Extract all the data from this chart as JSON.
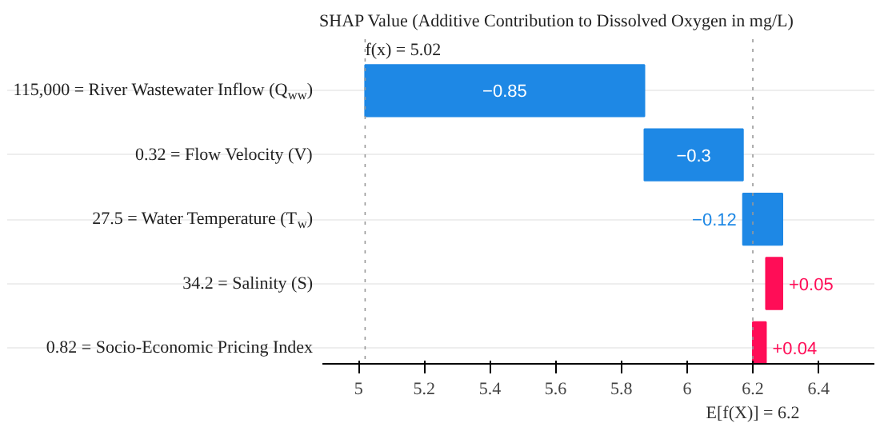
{
  "chart_data": {
    "type": "bar",
    "orientation": "horizontal",
    "title": "SHAP Value (Additive Contribution to Dissolved Oxygen in mg/L)",
    "categories": [
      "115,000 = River Wastewater Inflow (Q$_{ww}$)",
      "0.32 = Flow Velocity (V)",
      "27.5 = Water Temperature (T$_{w}$)",
      "34.2 = Salinity (S)",
      "0.82 = Socio-Economic Pricing Index"
    ],
    "values": [
      -0.85,
      -0.3,
      -0.12,
      0.05,
      0.04
    ],
    "base": [
      5.87,
      6.17,
      6.29,
      6.24,
      6.2
    ],
    "colors": [
      "#1e88e5",
      "#1e88e5",
      "#1e88e5",
      "#ff0d57",
      "#ff0d57"
    ],
    "value_labels": [
      "−0.85",
      "−0.3",
      "−0.12",
      "+0.05",
      "+0.04"
    ],
    "xlim": [
      4.89,
      6.57
    ],
    "xticks": [
      5.0,
      5.2,
      5.4,
      5.6,
      5.8,
      6.0,
      6.2,
      6.4
    ],
    "ref_lines": [
      {
        "axis": "x",
        "value": 5.02,
        "label": "f(x) = 5.02",
        "color": "#999999",
        "line_style": "dotted"
      },
      {
        "axis": "x",
        "value": 6.2,
        "label": "E[f(X)] = 6.2",
        "color": "#999999",
        "line_style": "dotted"
      }
    ],
    "grid": "y"
  }
}
